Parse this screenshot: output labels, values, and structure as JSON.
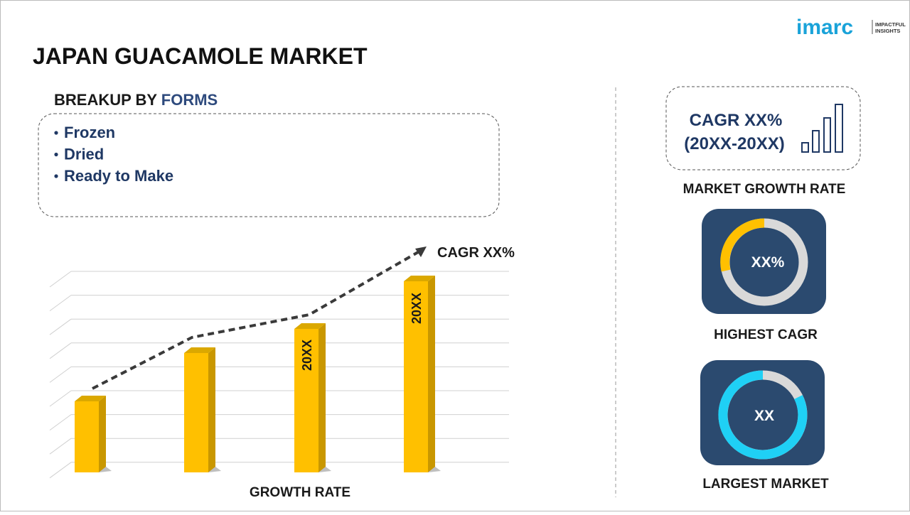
{
  "header": {
    "title": "JAPAN GUACAMOLE MARKET",
    "logo": {
      "name": "imarc",
      "tagline": [
        "IMPACTFUL",
        "INSIGHTS"
      ]
    }
  },
  "breakup": {
    "label": "BREAKUP BY",
    "dimension": "FORMS",
    "items": [
      "Frozen",
      "Dried",
      "Ready to Make"
    ]
  },
  "growth_chart": {
    "cagr_label": "CAGR XX%",
    "bar_labels": [
      "20XX",
      "20XX"
    ],
    "axis_label": "GROWTH RATE"
  },
  "kpis": [
    {
      "value": "CAGR XX%",
      "period": "(20XX-20XX)",
      "label": "MARKET GROWTH RATE"
    },
    {
      "value": "XX%",
      "label": "HIGHEST CAGR"
    },
    {
      "value": "XX",
      "label": "LARGEST MARKET"
    }
  ]
}
